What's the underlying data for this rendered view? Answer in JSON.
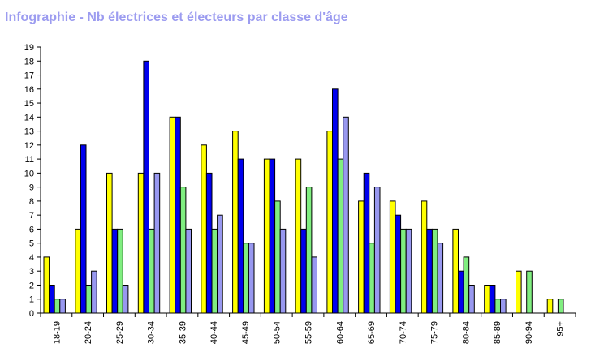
{
  "chart_data": {
    "type": "bar",
    "title": "Infographie - Nb électrices et électeurs par classe d'âge",
    "xlabel": "",
    "ylabel": "",
    "ylim": [
      0,
      19
    ],
    "yticks": [
      0,
      1,
      2,
      3,
      4,
      5,
      6,
      7,
      8,
      9,
      10,
      11,
      12,
      13,
      14,
      15,
      16,
      17,
      18,
      19
    ],
    "grid": false,
    "legend": "none",
    "categories": [
      "18-19",
      "20-24",
      "25-29",
      "30-34",
      "35-39",
      "40-44",
      "45-49",
      "50-54",
      "55-59",
      "60-64",
      "65-69",
      "70-74",
      "75-79",
      "80-84",
      "85-89",
      "90-94",
      "95+"
    ],
    "series": [
      {
        "color": "#ffff00",
        "values": [
          4,
          6,
          10,
          10,
          14,
          12,
          13,
          11,
          11,
          13,
          8,
          8,
          8,
          6,
          2,
          3,
          1
        ]
      },
      {
        "color": "#0000ee",
        "values": [
          2,
          12,
          6,
          18,
          14,
          10,
          11,
          11,
          6,
          16,
          10,
          7,
          6,
          3,
          2,
          0,
          0
        ]
      },
      {
        "color": "#80ee80",
        "values": [
          1,
          2,
          6,
          6,
          9,
          6,
          5,
          8,
          9,
          11,
          5,
          6,
          6,
          4,
          1,
          3,
          1
        ]
      },
      {
        "color": "#9898f0",
        "values": [
          1,
          3,
          2,
          10,
          6,
          7,
          5,
          6,
          4,
          14,
          9,
          6,
          5,
          2,
          1,
          0,
          0
        ]
      }
    ]
  }
}
